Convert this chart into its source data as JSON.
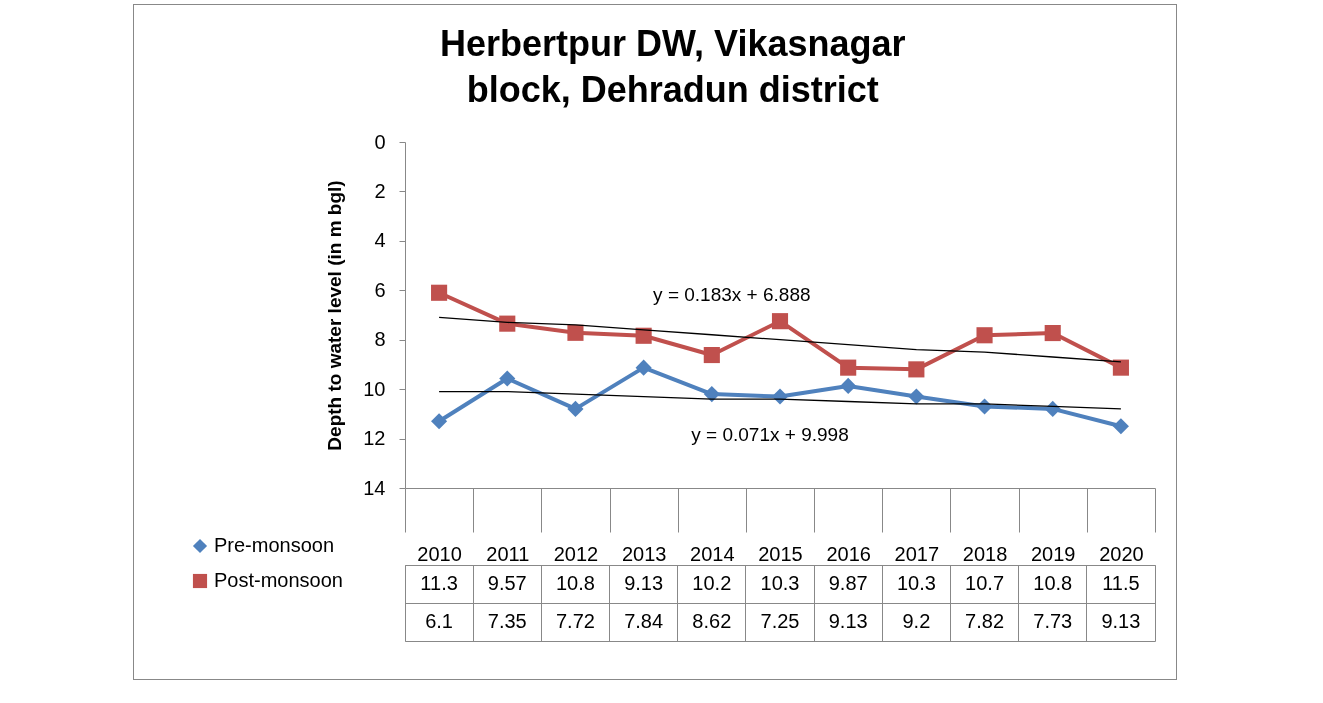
{
  "chart_data": {
    "type": "line",
    "title": "Herbertpur DW, Vikasnagar\nblock, Dehradun district",
    "ylabel": "Depth to water level (in m bgl)",
    "categories": [
      "2010",
      "2011",
      "2012",
      "2013",
      "2014",
      "2015",
      "2016",
      "2017",
      "2018",
      "2019",
      "2020"
    ],
    "series": [
      {
        "name": "Pre-monsoon",
        "color": "#4f81bd",
        "marker": "diamond",
        "values": [
          11.3,
          9.57,
          10.8,
          9.13,
          10.2,
          10.3,
          9.87,
          10.3,
          10.7,
          10.8,
          11.5
        ],
        "value_labels": [
          "11.3",
          "9.57",
          "10.8",
          "9.13",
          "10.2",
          "10.3",
          "9.87",
          "10.3",
          "10.7",
          "10.8",
          "11.5"
        ]
      },
      {
        "name": "Post-monsoon",
        "color": "#c0504d",
        "marker": "square",
        "values": [
          6.1,
          7.35,
          7.72,
          7.84,
          8.62,
          7.25,
          9.13,
          9.2,
          7.82,
          7.73,
          9.13
        ],
        "value_labels": [
          "6.1",
          "7.35",
          "7.72",
          "7.84",
          "8.62",
          "7.25",
          "9.13",
          "9.2",
          "7.82",
          "7.73",
          "9.13"
        ]
      },
      {
        "type": "line",
        "color": "#000000",
        "marker": "none",
        "values": [
          7.1,
          7.3,
          7.4,
          7.6,
          7.8,
          8.0,
          8.2,
          8.4,
          8.5,
          8.7,
          8.9
        ]
      },
      {
        "type": "line",
        "color": "#000000",
        "marker": "none",
        "values": [
          10.1,
          10.1,
          10.2,
          10.3,
          10.4,
          10.4,
          10.5,
          10.6,
          10.6,
          10.7,
          10.8
        ]
      }
    ],
    "ylim": [
      14,
      0
    ],
    "yticks": [
      0,
      2,
      4,
      6,
      8,
      10,
      12,
      14
    ],
    "grid": false,
    "legend": "bottom",
    "annotations": [
      "y = 0.183x + 6.888",
      "y = 0.071x + 9.998"
    ]
  }
}
